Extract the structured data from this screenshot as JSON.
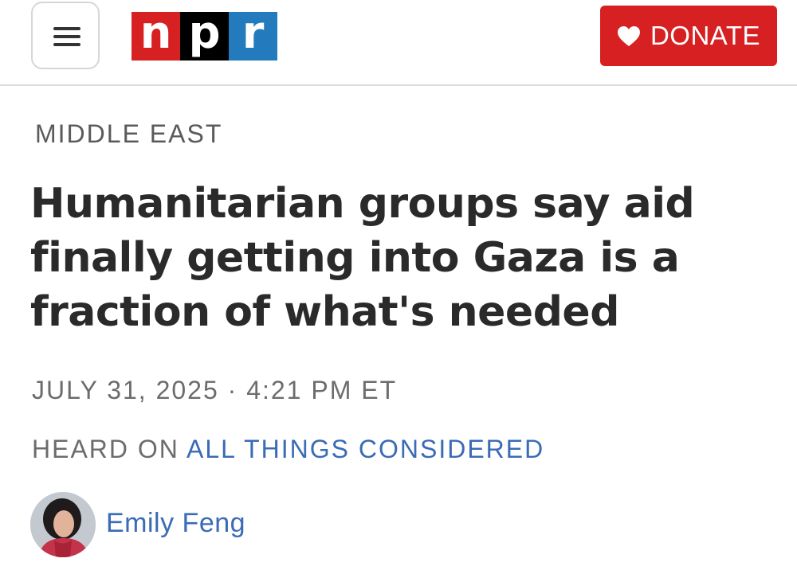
{
  "header": {
    "logo": {
      "letters": [
        "n",
        "p",
        "r"
      ]
    },
    "donate_label": "DONATE",
    "colors": {
      "logo_red": "#d62021",
      "logo_black": "#000000",
      "logo_blue": "#237bbd",
      "donate_bg": "#d62021"
    },
    "icons": {
      "menu": "hamburger-menu-icon",
      "donate": "heart-icon"
    }
  },
  "article": {
    "section": "MIDDLE EAST",
    "headline": "Humanitarian groups say aid finally getting into Gaza is a fraction of what's needed",
    "dateline": "JULY 31, 2025 · 4:21 PM ET",
    "heard_on_prefix": "HEARD ON",
    "program": "ALL THINGS CONSIDERED",
    "author": "Emily Feng",
    "link_color": "#3a6bb5"
  }
}
